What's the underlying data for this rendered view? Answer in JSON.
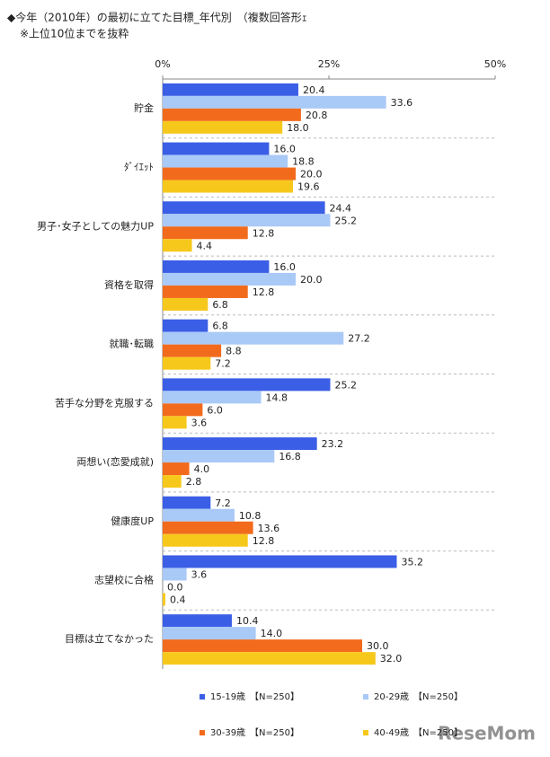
{
  "chart_data": {
    "type": "bar",
    "orientation": "horizontal",
    "title": "◆今年（2010年）の最初に立てた目標_年代別　（複数回答形ｪ",
    "subtitle": "※上位10位までを抜粋",
    "categories": [
      "貯金",
      "ﾀﾞｲｴｯﾄ",
      "男子･女子としての魅力UP",
      "資格を取得",
      "就職･転職",
      "苦手な分野を克服する",
      "両想い(恋愛成就)",
      "健康度UP",
      "志望校に合格",
      "目標は立てなかった"
    ],
    "series": [
      {
        "name": "15-19歳　【N=250】",
        "color": "#3b5ee6",
        "values": [
          20.4,
          16.0,
          24.4,
          16.0,
          6.8,
          25.2,
          23.2,
          7.2,
          35.2,
          10.4
        ],
        "value_labels": [
          "20.4",
          "16.0",
          "24.4",
          "16.0",
          "6.8",
          "25.2",
          "23.2",
          "7.2",
          "35.2",
          "10.4"
        ]
      },
      {
        "name": "20-29歳　【N=250】",
        "color": "#a9c9f7",
        "values": [
          33.6,
          18.8,
          25.2,
          20.0,
          27.2,
          14.8,
          16.8,
          10.8,
          3.6,
          14.0
        ],
        "value_labels": [
          "33.6",
          "18.8",
          "25.2",
          "20.0",
          "27.2",
          "14.8",
          "16.8",
          "10.8",
          "3.6",
          "14.0"
        ]
      },
      {
        "name": "30-39歳　【N=250】",
        "color": "#f26b1d",
        "values": [
          20.8,
          20.0,
          12.8,
          12.8,
          8.8,
          6.0,
          4.0,
          13.6,
          0.0,
          30.0
        ],
        "value_labels": [
          "20.8",
          "20.0",
          "12.8",
          "12.8",
          "8.8",
          "6.0",
          "4.0",
          "13.6",
          "0.0",
          "30.0"
        ]
      },
      {
        "name": "40-49歳　【N=250】",
        "color": "#f7c81c",
        "values": [
          18.0,
          19.6,
          4.4,
          6.8,
          7.2,
          3.6,
          2.8,
          12.8,
          0.4,
          32.0
        ],
        "value_labels": [
          "18.0",
          "19.6",
          "4.4",
          "6.8",
          "7.2",
          "3.6",
          "2.8",
          "12.8",
          "0.4",
          "32.0"
        ]
      }
    ],
    "xlim": [
      0,
      50
    ],
    "xticks": [
      {
        "value": 0,
        "label": "0%"
      },
      {
        "value": 25,
        "label": "25%"
      },
      {
        "value": 50,
        "label": "50%"
      }
    ],
    "watermark": "ReseMom"
  }
}
